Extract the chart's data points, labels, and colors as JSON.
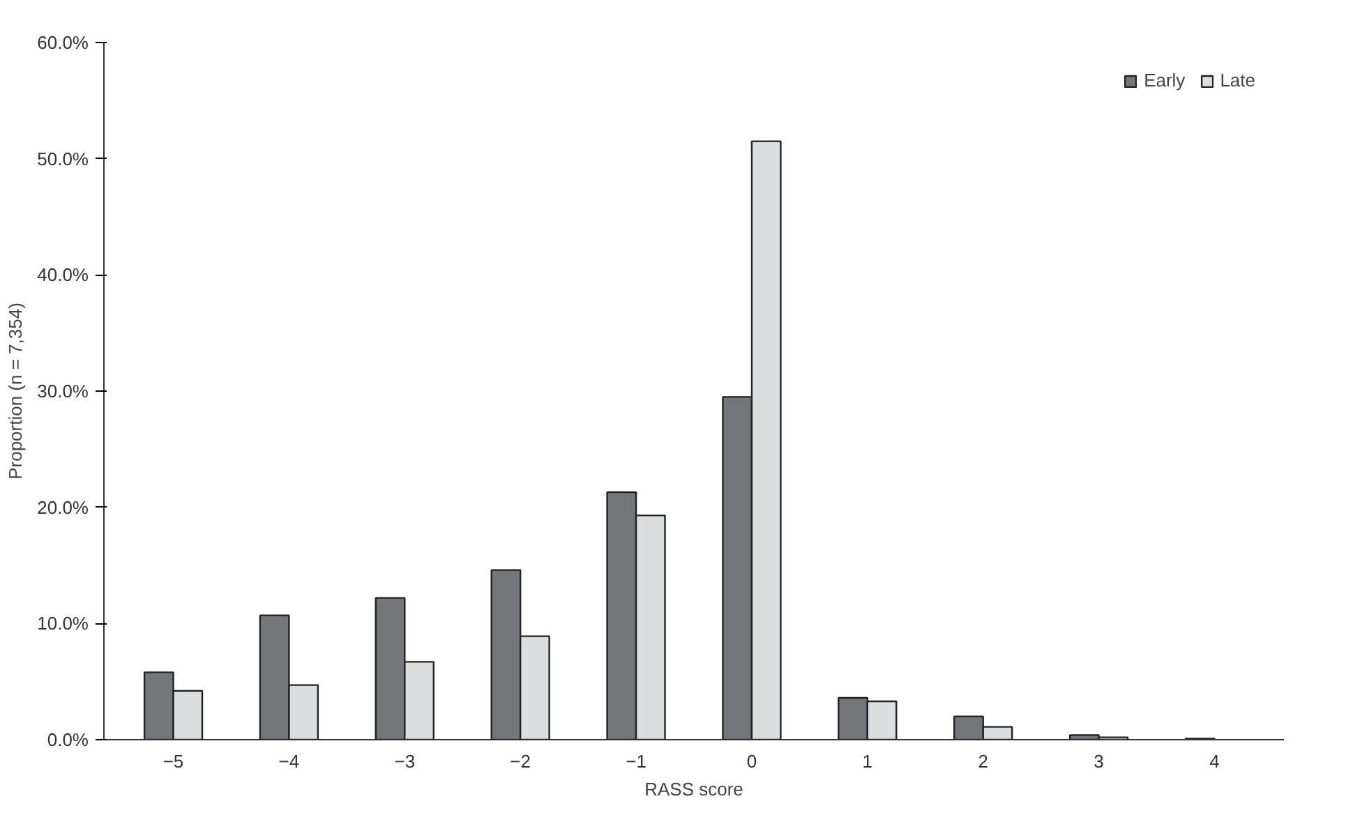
{
  "chart_data": {
    "type": "bar",
    "xlabel": "RASS score",
    "ylabel": "Proportion (n = 7,354)",
    "categories": [
      "−5",
      "−4",
      "−3",
      "−2",
      "−1",
      "0",
      "1",
      "2",
      "3",
      "4"
    ],
    "series": [
      {
        "name": "Early",
        "color": "#75767a",
        "values": [
          5.8,
          10.7,
          12.2,
          14.6,
          21.3,
          29.5,
          3.6,
          2.0,
          0.4,
          0.1
        ]
      },
      {
        "name": "Late",
        "color": "#dcdddf",
        "values": [
          4.2,
          4.7,
          6.7,
          8.9,
          19.3,
          51.5,
          3.3,
          1.1,
          0.2,
          null
        ]
      }
    ],
    "ylim": [
      0,
      60
    ],
    "yticks": [
      {
        "value": 0,
        "label": "0.0%"
      },
      {
        "value": 10,
        "label": "10.0%"
      },
      {
        "value": 20,
        "label": "20.0%"
      },
      {
        "value": 30,
        "label": "30.0%"
      },
      {
        "value": 40,
        "label": "40.0%"
      },
      {
        "value": 50,
        "label": "50.0%"
      },
      {
        "value": 60,
        "label": "60.0%"
      }
    ],
    "grid": false,
    "legend": "top right"
  }
}
